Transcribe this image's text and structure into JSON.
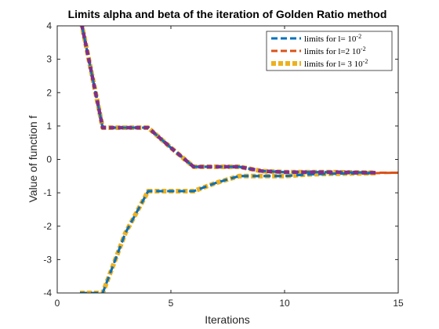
{
  "chart_data": {
    "type": "line",
    "title": "Limits alpha and beta of the iteration of Golden Ratio method",
    "xlabel": "Iterations",
    "ylabel": "Value of function f",
    "xlim": [
      0,
      15
    ],
    "ylim": [
      -4,
      4
    ],
    "xticks": [
      0,
      5,
      10,
      15
    ],
    "yticks": [
      -4,
      -3,
      -2,
      -1,
      0,
      1,
      2,
      3,
      4
    ],
    "grid": false,
    "legend_position": "top-right",
    "series": [
      {
        "name": "limits for l= 10^-2",
        "color": "#0072BD",
        "upper": {
          "x": [
            1,
            2,
            3,
            4,
            5,
            6,
            7,
            8,
            9,
            10,
            11,
            12,
            13,
            14
          ],
          "y": [
            4.3,
            0.95,
            0.95,
            0.95,
            0.35,
            -0.22,
            -0.22,
            -0.22,
            -0.35,
            -0.38,
            -0.38,
            -0.38,
            -0.39,
            -0.4
          ]
        },
        "lower": {
          "x": [
            1,
            2,
            3,
            4,
            5,
            6,
            7,
            8,
            9,
            10,
            11,
            12,
            13,
            14
          ],
          "y": [
            -4,
            -4,
            -2.2,
            -0.95,
            -0.95,
            -0.95,
            -0.7,
            -0.5,
            -0.5,
            -0.5,
            -0.45,
            -0.43,
            -0.42,
            -0.41
          ]
        }
      },
      {
        "name": "limits for l=2 10^-2",
        "color": "#D95319",
        "upper": {
          "x": [
            1,
            2,
            3,
            4,
            5,
            6,
            7,
            8,
            9,
            10,
            11,
            12,
            13,
            14,
            15
          ],
          "y": [
            4.3,
            0.95,
            0.95,
            0.95,
            0.35,
            -0.22,
            -0.22,
            -0.22,
            -0.35,
            -0.38,
            -0.38,
            -0.38,
            -0.39,
            -0.4,
            -0.4
          ]
        },
        "lower": {
          "x": [
            1,
            2,
            3,
            4,
            5,
            6,
            7,
            8,
            9,
            10,
            11,
            12,
            13,
            14,
            15
          ],
          "y": [
            -4,
            -4,
            -2.2,
            -0.95,
            -0.95,
            -0.95,
            -0.7,
            -0.5,
            -0.5,
            -0.5,
            -0.45,
            -0.43,
            -0.42,
            -0.41,
            -0.4
          ]
        }
      },
      {
        "name": "limits for l= 3 10^-2",
        "color": "#EDB120",
        "upper": {
          "x": [
            1,
            2,
            3,
            4,
            5,
            6,
            7,
            8,
            9,
            10,
            11,
            12,
            13,
            14
          ],
          "y": [
            4.3,
            0.95,
            0.95,
            0.95,
            0.35,
            -0.22,
            -0.22,
            -0.22,
            -0.35,
            -0.38,
            -0.38,
            -0.38,
            -0.39,
            -0.4
          ]
        },
        "lower": {
          "x": [
            1,
            2,
            3,
            4,
            5,
            6,
            7,
            8,
            9,
            10,
            11,
            12,
            13,
            14
          ],
          "y": [
            -4,
            -4,
            -2.2,
            -0.95,
            -0.95,
            -0.95,
            -0.7,
            -0.5,
            -0.5,
            -0.5,
            -0.45,
            -0.43,
            -0.42,
            -0.41
          ]
        }
      }
    ],
    "overlay": {
      "color": "#7E2F8E",
      "x": [
        1,
        2,
        3,
        4,
        5,
        6,
        7,
        8,
        9,
        10,
        11,
        12,
        13,
        14
      ],
      "y": [
        4.3,
        0.95,
        0.95,
        0.95,
        0.35,
        -0.22,
        -0.22,
        -0.22,
        -0.35,
        -0.38,
        -0.38,
        -0.38,
        -0.39,
        -0.4
      ]
    }
  }
}
